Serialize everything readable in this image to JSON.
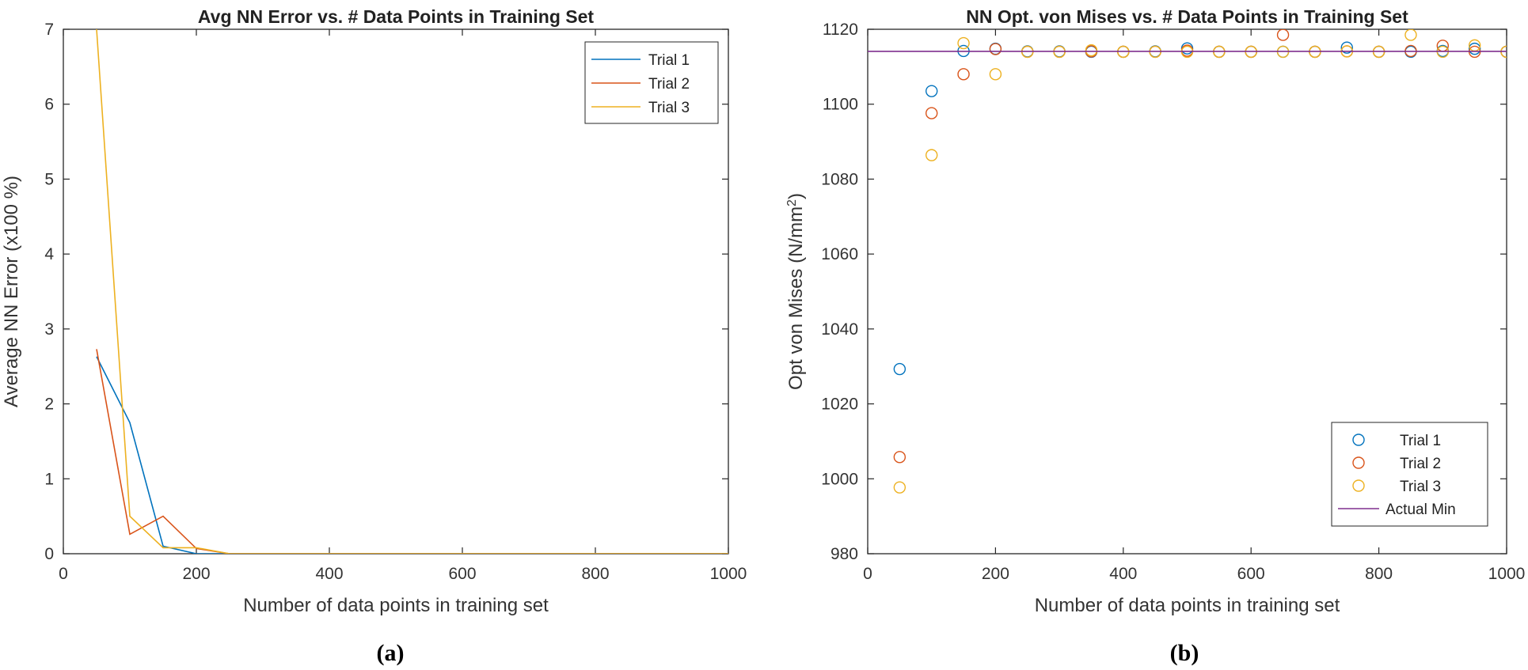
{
  "chart_data": [
    {
      "type": "line",
      "title": "Avg NN Error vs. # Data Points in Training Set",
      "xlabel": "Number of data points in training set",
      "ylabel": "Average NN Error (x100 %)",
      "xlim": [
        0,
        1000
      ],
      "ylim": [
        0,
        7
      ],
      "xticks": [
        0,
        200,
        400,
        600,
        800,
        1000
      ],
      "yticks": [
        0,
        1,
        2,
        3,
        4,
        5,
        6,
        7
      ],
      "legend_position": "top-right",
      "panel_label": "(a)",
      "x": [
        50,
        100,
        150,
        200,
        250,
        300,
        350,
        400,
        450,
        500,
        550,
        600,
        650,
        700,
        750,
        800,
        850,
        900,
        950,
        1000
      ],
      "series": [
        {
          "name": "Trial 1",
          "color": "#0072BD",
          "values": [
            2.63,
            1.75,
            0.1,
            0.0,
            0.0,
            0.0,
            0.0,
            0.0,
            0.0,
            0.0,
            0.0,
            0.0,
            0.0,
            0.0,
            0.0,
            0.0,
            0.0,
            0.0,
            0.0,
            0.0
          ]
        },
        {
          "name": "Trial 2",
          "color": "#D95319",
          "values": [
            2.73,
            0.26,
            0.5,
            0.07,
            0.0,
            0.0,
            0.0,
            0.0,
            0.0,
            0.0,
            0.0,
            0.0,
            0.0,
            0.0,
            0.0,
            0.0,
            0.0,
            0.0,
            0.0,
            0.0
          ]
        },
        {
          "name": "Trial 3",
          "color": "#EDB120",
          "values": [
            7.0,
            0.5,
            0.08,
            0.08,
            0.0,
            0.0,
            0.0,
            0.0,
            0.0,
            0.0,
            0.0,
            0.0,
            0.0,
            0.0,
            0.0,
            0.0,
            0.0,
            0.0,
            0.0,
            0.0
          ]
        }
      ]
    },
    {
      "type": "scatter",
      "title": "NN Opt. von Mises vs. # Data Points in Training Set",
      "xlabel": "Number of data points in training set",
      "ylabel": "Opt von Mises (N/mm",
      "ylabel_superscript": "2",
      "ylabel_end": ")",
      "xlim": [
        0,
        1000
      ],
      "ylim": [
        980,
        1120
      ],
      "xticks": [
        0,
        200,
        400,
        600,
        800,
        1000
      ],
      "yticks": [
        980,
        1000,
        1020,
        1040,
        1060,
        1080,
        1100,
        1120
      ],
      "legend_position": "bottom-right",
      "panel_label": "(b)",
      "x": [
        50,
        100,
        150,
        200,
        250,
        300,
        350,
        400,
        450,
        500,
        550,
        600,
        650,
        700,
        750,
        800,
        850,
        900,
        950,
        1000
      ],
      "series": [
        {
          "name": "Trial 1",
          "color": "#0072BD",
          "values": [
            1029.3,
            1103.5,
            1114.2,
            1114.8,
            1114.1,
            1114.1,
            1114.0,
            1114.0,
            1114.1,
            1114.9,
            1114.0,
            1114.0,
            1114.0,
            1114.0,
            1115.1,
            1114.0,
            1114.0,
            1114.2,
            1114.8,
            1114.0
          ]
        },
        {
          "name": "Trial 2",
          "color": "#D95319",
          "values": [
            1005.8,
            1097.6,
            1108.0,
            1114.7,
            1114.0,
            1114.0,
            1114.1,
            1114.0,
            1114.0,
            1114.3,
            1114.0,
            1114.0,
            1118.5,
            1114.0,
            1114.1,
            1114.0,
            1114.2,
            1115.6,
            1114.0,
            1114.0
          ]
        },
        {
          "name": "Trial 3",
          "color": "#EDB120",
          "values": [
            997.7,
            1086.4,
            1116.3,
            1108.0,
            1114.0,
            1114.0,
            1114.4,
            1114.0,
            1114.0,
            1114.0,
            1114.0,
            1114.0,
            1114.0,
            1114.0,
            1114.1,
            1114.0,
            1118.5,
            1114.0,
            1115.7,
            1114.0
          ]
        },
        {
          "name": "Actual Min",
          "color": "#7E2F8E",
          "type": "hline",
          "value": 1114.1
        }
      ]
    }
  ]
}
